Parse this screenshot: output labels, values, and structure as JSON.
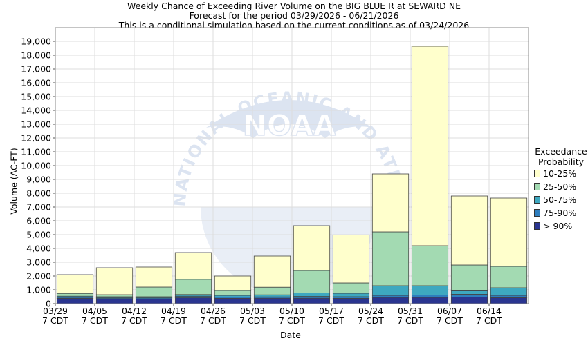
{
  "titles": {
    "line1": "Weekly Chance of Exceeding River Volume on the BIG BLUE R at SEWARD NE",
    "line2": "Forecast for the period 03/29/2026 - 06/21/2026",
    "line3": "This is a conditional simulation based on the current conditions as of 03/24/2026"
  },
  "watermark": {
    "logo_text": "NOAA",
    "ring_text": "NATIONAL OCEANIC AND ATMOSPHERIC ADMINISTRATION · U.S. DEPARTMENT OF COMMERCE"
  },
  "chart_data": {
    "type": "bar",
    "stacked": true,
    "xlabel": "Date",
    "ylabel": "Volume (AC-FT)",
    "ylim": [
      0,
      20000
    ],
    "ytick_step": 1000,
    "grid": true,
    "categories": [
      [
        "03/29",
        "7 CDT"
      ],
      [
        "04/05",
        "7 CDT"
      ],
      [
        "04/12",
        "7 CDT"
      ],
      [
        "04/19",
        "7 CDT"
      ],
      [
        "04/26",
        "7 CDT"
      ],
      [
        "05/03",
        "7 CDT"
      ],
      [
        "05/10",
        "7 CDT"
      ],
      [
        "05/17",
        "7 CDT"
      ],
      [
        "05/24",
        "7 CDT"
      ],
      [
        "05/31",
        "7 CDT"
      ],
      [
        "06/07",
        "7 CDT"
      ],
      [
        "06/14",
        "7 CDT"
      ]
    ],
    "legend": {
      "title_line1": "Exceedance",
      "title_line2": "Probability",
      "placement": "right"
    },
    "series": [
      {
        "name": "> 90%",
        "color": "#2a3590",
        "values": [
          380,
          360,
          350,
          420,
          380,
          390,
          390,
          380,
          450,
          450,
          480,
          430
        ]
      },
      {
        "name": "75-90%",
        "color": "#2e7dbd",
        "values": [
          80,
          60,
          70,
          120,
          100,
          100,
          130,
          120,
          150,
          180,
          200,
          170
        ]
      },
      {
        "name": "50-75%",
        "color": "#3ea8c0",
        "values": [
          80,
          80,
          80,
          120,
          120,
          150,
          250,
          250,
          700,
          670,
          250,
          550
        ]
      },
      {
        "name": "25-50%",
        "color": "#a3dab2",
        "values": [
          200,
          150,
          700,
          1100,
          350,
          550,
          1630,
          750,
          3900,
          2900,
          1870,
          1550
        ]
      },
      {
        "name": "10-25%",
        "color": "#ffffcc",
        "values": [
          1360,
          1950,
          1450,
          1940,
          1050,
          2260,
          3250,
          3480,
          4200,
          14450,
          5000,
          4950
        ]
      }
    ]
  }
}
